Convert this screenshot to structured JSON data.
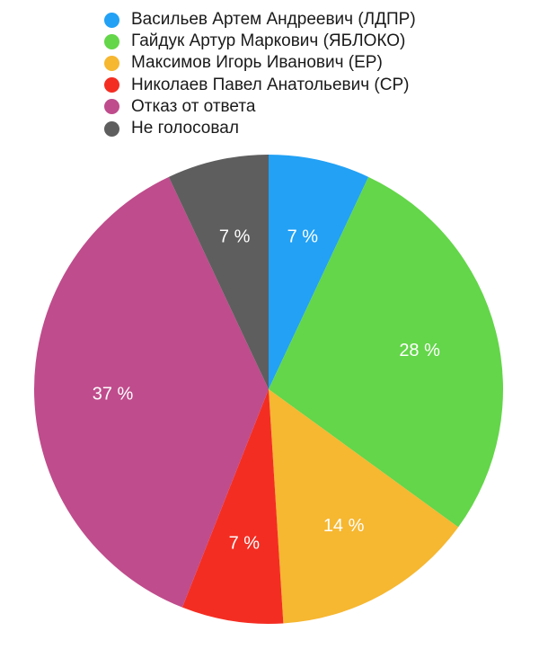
{
  "chart_data": {
    "type": "pie",
    "title": "",
    "legend_position": "top",
    "slices": [
      {
        "name": "Васильев Артем Андреевич (ЛДПР)",
        "value": 7,
        "label": "7 %",
        "color": "#22a1f5"
      },
      {
        "name": "Гайдук Артур Маркович (ЯБЛОКО)",
        "value": 28,
        "label": "28 %",
        "color": "#63d649"
      },
      {
        "name": "Максимов Игорь Иванович (ЕР)",
        "value": 14,
        "label": "14 %",
        "color": "#f6b731"
      },
      {
        "name": "Николаев Павел Анатольевич (СР)",
        "value": 7,
        "label": "7 %",
        "color": "#f42d22"
      },
      {
        "name": "Отказ от ответа",
        "value": 37,
        "label": "37 %",
        "color": "#bf4c8c"
      },
      {
        "name": "Не голосовал",
        "value": 7,
        "label": "7 %",
        "color": "#5e5e5e"
      }
    ]
  }
}
